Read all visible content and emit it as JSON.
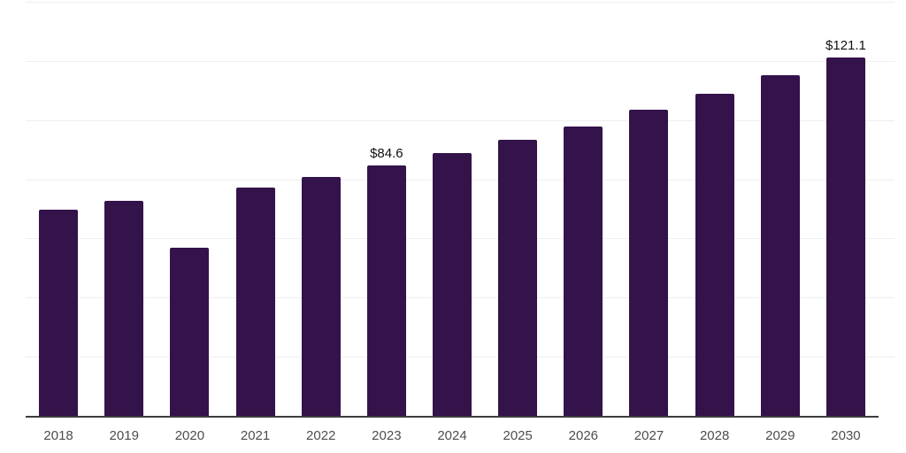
{
  "chart": {
    "bar_color": "#34124a",
    "grid_color": "#efeff1",
    "axis_color": "#3d3d3d",
    "tick_label_color": "#4d4d4d",
    "data_label_color": "#111111"
  },
  "chart_data": {
    "type": "bar",
    "categories": [
      "2018",
      "2019",
      "2020",
      "2021",
      "2022",
      "2023",
      "2024",
      "2025",
      "2026",
      "2027",
      "2028",
      "2029",
      "2030"
    ],
    "values": [
      69.7,
      72.7,
      56.9,
      77.2,
      80.8,
      84.6,
      88.8,
      93.4,
      97.9,
      103.4,
      108.9,
      115.3,
      121.1
    ],
    "data_labels": [
      "",
      "",
      "",
      "",
      "",
      "$84.6",
      "",
      "",
      "",
      "",
      "",
      "",
      "$121.1"
    ],
    "title": "",
    "xlabel": "",
    "ylabel": "",
    "ylim": [
      0,
      140
    ],
    "gridline_step": 20,
    "grid": true,
    "legend": false
  }
}
